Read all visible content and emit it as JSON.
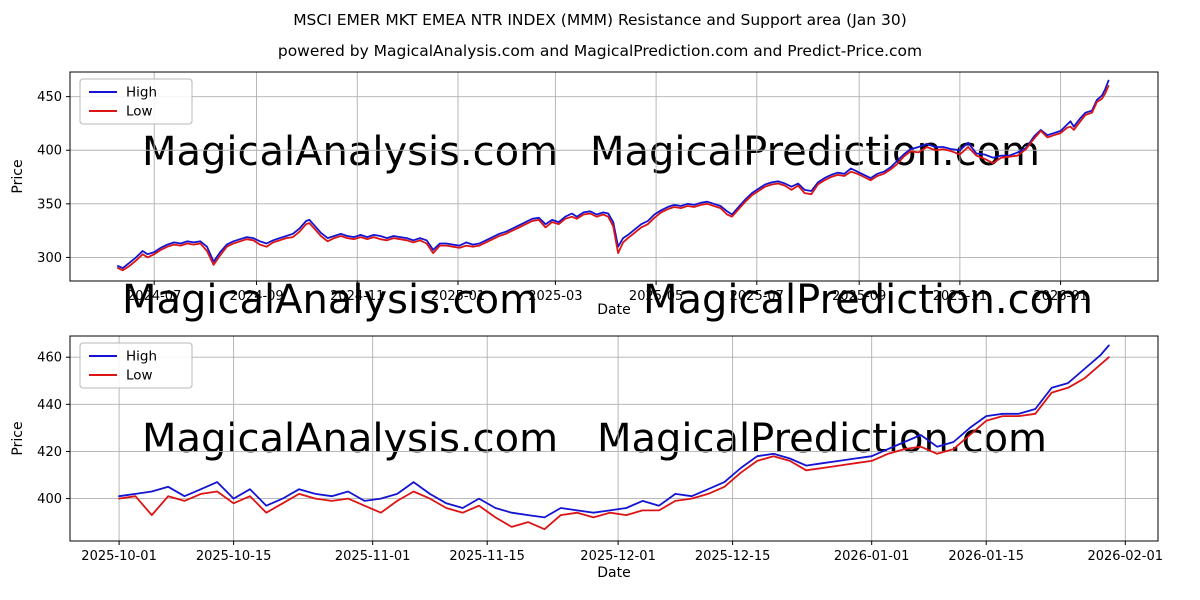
{
  "figure": {
    "title": "MSCI EMER MKT EMEA NTR INDEX (MMM) Resistance and Support area (Jan 30)",
    "subtitle": "powered by MagicalAnalysis.com and MagicalPrediction.com and Predict-Price.com"
  },
  "watermarks": {
    "left": "MagicalAnalysis.com",
    "right": "MagicalPrediction.com"
  },
  "colors": {
    "high": "#1414d2",
    "low": "#dc1414",
    "grid": "#b0b0b0",
    "frame": "#000000",
    "watermark": "#e5e5e5",
    "legend_border": "#b7b7b7"
  },
  "chart_data": [
    {
      "type": "line",
      "name": "full-history",
      "xlabel": "Date",
      "ylabel": "Price",
      "grid": true,
      "legend_position": "upper left",
      "ylim": [
        278,
        473
      ],
      "yticks": [
        300,
        350,
        400,
        450
      ],
      "xlim": [
        "2024-05-11",
        "2026-03-01"
      ],
      "xticks": [
        {
          "date": "2024-07-01",
          "label": "2024-07"
        },
        {
          "date": "2024-09-01",
          "label": "2024-09"
        },
        {
          "date": "2024-11-01",
          "label": "2024-11"
        },
        {
          "date": "2025-01-01",
          "label": "2025-01"
        },
        {
          "date": "2025-03-01",
          "label": "2025-03"
        },
        {
          "date": "2025-05-01",
          "label": "2025-05"
        },
        {
          "date": "2025-07-01",
          "label": "2025-07"
        },
        {
          "date": "2025-09-01",
          "label": "2025-09"
        },
        {
          "date": "2025-11-01",
          "label": "2025-11"
        },
        {
          "date": "2026-01-01",
          "label": "2026-01"
        }
      ],
      "dates": [
        "2024-06-09",
        "2024-06-12",
        "2024-06-16",
        "2024-06-20",
        "2024-06-24",
        "2024-06-27",
        "2024-07-01",
        "2024-07-05",
        "2024-07-09",
        "2024-07-13",
        "2024-07-17",
        "2024-07-21",
        "2024-07-25",
        "2024-07-29",
        "2024-08-02",
        "2024-08-06",
        "2024-08-10",
        "2024-08-14",
        "2024-08-18",
        "2024-08-22",
        "2024-08-26",
        "2024-08-30",
        "2024-09-03",
        "2024-09-07",
        "2024-09-11",
        "2024-09-15",
        "2024-09-19",
        "2024-09-23",
        "2024-09-27",
        "2024-10-01",
        "2024-10-03",
        "2024-10-06",
        "2024-10-10",
        "2024-10-14",
        "2024-10-18",
        "2024-10-22",
        "2024-10-26",
        "2024-10-30",
        "2024-11-03",
        "2024-11-07",
        "2024-11-11",
        "2024-11-15",
        "2024-11-19",
        "2024-11-23",
        "2024-11-27",
        "2024-12-01",
        "2024-12-05",
        "2024-12-09",
        "2024-12-13",
        "2024-12-17",
        "2024-12-21",
        "2024-12-25",
        "2024-12-29",
        "2025-01-02",
        "2025-01-06",
        "2025-01-10",
        "2025-01-14",
        "2025-01-18",
        "2025-01-22",
        "2025-01-26",
        "2025-01-30",
        "2025-02-03",
        "2025-02-07",
        "2025-02-11",
        "2025-02-15",
        "2025-02-19",
        "2025-02-23",
        "2025-02-27",
        "2025-03-03",
        "2025-03-07",
        "2025-03-11",
        "2025-03-14",
        "2025-03-18",
        "2025-03-22",
        "2025-03-26",
        "2025-03-30",
        "2025-04-02",
        "2025-04-05",
        "2025-04-08",
        "2025-04-11",
        "2025-04-14",
        "2025-04-18",
        "2025-04-22",
        "2025-04-26",
        "2025-04-30",
        "2025-05-04",
        "2025-05-08",
        "2025-05-12",
        "2025-05-16",
        "2025-05-20",
        "2025-05-24",
        "2025-05-28",
        "2025-06-01",
        "2025-06-05",
        "2025-06-09",
        "2025-06-13",
        "2025-06-16",
        "2025-06-20",
        "2025-06-24",
        "2025-06-28",
        "2025-07-02",
        "2025-07-06",
        "2025-07-10",
        "2025-07-14",
        "2025-07-18",
        "2025-07-22",
        "2025-07-26",
        "2025-07-30",
        "2025-08-03",
        "2025-08-07",
        "2025-08-11",
        "2025-08-15",
        "2025-08-19",
        "2025-08-23",
        "2025-08-27",
        "2025-08-31",
        "2025-09-04",
        "2025-09-08",
        "2025-09-12",
        "2025-09-16",
        "2025-09-20",
        "2025-09-24",
        "2025-09-28",
        "2025-10-02",
        "2025-10-07",
        "2025-10-12",
        "2025-10-17",
        "2025-10-22",
        "2025-10-27",
        "2025-11-01",
        "2025-11-06",
        "2025-11-11",
        "2025-11-16",
        "2025-11-21",
        "2025-11-26",
        "2025-12-01",
        "2025-12-06",
        "2025-12-11",
        "2025-12-16",
        "2025-12-20",
        "2025-12-24",
        "2025-12-28",
        "2026-01-01",
        "2026-01-05",
        "2026-01-07",
        "2026-01-09",
        "2026-01-13",
        "2026-01-16",
        "2026-01-20",
        "2026-01-23",
        "2026-01-26",
        "2026-01-28",
        "2026-01-30"
      ],
      "series": [
        {
          "name": "High",
          "color": "#1414d2",
          "values": [
            292,
            290,
            295,
            300,
            306,
            303,
            305,
            309,
            312,
            314,
            313,
            315,
            314,
            315,
            310,
            296,
            305,
            312,
            315,
            317,
            319,
            318,
            315,
            313,
            316,
            318,
            320,
            322,
            327,
            334,
            335,
            330,
            323,
            318,
            320,
            322,
            320,
            319,
            321,
            319,
            321,
            320,
            318,
            320,
            319,
            318,
            316,
            318,
            316,
            307,
            313,
            313,
            312,
            311,
            314,
            312,
            313,
            316,
            319,
            322,
            324,
            327,
            330,
            333,
            336,
            337,
            331,
            335,
            333,
            338,
            341,
            338,
            342,
            343,
            340,
            342,
            341,
            333,
            310,
            318,
            321,
            326,
            331,
            334,
            340,
            344,
            347,
            349,
            348,
            350,
            349,
            351,
            352,
            350,
            348,
            343,
            340,
            347,
            354,
            360,
            364,
            368,
            370,
            371,
            369,
            366,
            369,
            363,
            362,
            370,
            374,
            377,
            379,
            378,
            383,
            380,
            377,
            374,
            378,
            380,
            384,
            390,
            396,
            401,
            403,
            406,
            403,
            403,
            401,
            400,
            407,
            397,
            396,
            393,
            395,
            395,
            398,
            402,
            413,
            419,
            414,
            416,
            418,
            424,
            427,
            422,
            430,
            435,
            437,
            447,
            451,
            457,
            465
          ]
        },
        {
          "name": "Low",
          "color": "#dc1414",
          "values": [
            290,
            288,
            292,
            297,
            303,
            300,
            303,
            307,
            310,
            312,
            311,
            313,
            312,
            313,
            306,
            293,
            302,
            310,
            313,
            315,
            317,
            316,
            312,
            310,
            314,
            316,
            318,
            319,
            324,
            331,
            332,
            327,
            320,
            315,
            318,
            320,
            318,
            317,
            319,
            317,
            319,
            317,
            316,
            318,
            317,
            316,
            314,
            316,
            313,
            304,
            311,
            311,
            310,
            309,
            311,
            310,
            311,
            314,
            317,
            320,
            322,
            325,
            328,
            331,
            334,
            335,
            328,
            333,
            331,
            336,
            338,
            336,
            340,
            341,
            338,
            340,
            338,
            329,
            304,
            314,
            318,
            323,
            328,
            331,
            337,
            342,
            345,
            347,
            346,
            348,
            347,
            349,
            350,
            348,
            346,
            340,
            338,
            345,
            352,
            358,
            362,
            366,
            368,
            369,
            367,
            363,
            367,
            360,
            359,
            368,
            372,
            375,
            377,
            376,
            380,
            378,
            375,
            372,
            376,
            378,
            382,
            387,
            394,
            399,
            398,
            403,
            400,
            401,
            399,
            396,
            403,
            395,
            392,
            388,
            393,
            394,
            395,
            401,
            411,
            418,
            412,
            414,
            416,
            421,
            422,
            419,
            427,
            433,
            435,
            445,
            448,
            453,
            460
          ]
        }
      ]
    },
    {
      "type": "line",
      "name": "recent-four-months",
      "xlabel": "Date",
      "ylabel": "Price",
      "grid": true,
      "legend_position": "upper left",
      "ylim": [
        382,
        469
      ],
      "yticks": [
        400,
        420,
        440,
        460
      ],
      "xlim": [
        "2025-09-25",
        "2026-02-05"
      ],
      "xticks": [
        {
          "date": "2025-10-01",
          "label": "2025-10-01"
        },
        {
          "date": "2025-10-15",
          "label": "2025-10-15"
        },
        {
          "date": "2025-11-01",
          "label": "2025-11-01"
        },
        {
          "date": "2025-11-15",
          "label": "2025-11-15"
        },
        {
          "date": "2025-12-01",
          "label": "2025-12-01"
        },
        {
          "date": "2025-12-15",
          "label": "2025-12-15"
        },
        {
          "date": "2026-01-01",
          "label": "2026-01-01"
        },
        {
          "date": "2026-01-15",
          "label": "2026-01-15"
        },
        {
          "date": "2026-02-01",
          "label": "2026-02-01"
        }
      ],
      "dates": [
        "2025-10-01",
        "2025-10-03",
        "2025-10-05",
        "2025-10-07",
        "2025-10-09",
        "2025-10-11",
        "2025-10-13",
        "2025-10-15",
        "2025-10-17",
        "2025-10-19",
        "2025-10-21",
        "2025-10-23",
        "2025-10-25",
        "2025-10-27",
        "2025-10-29",
        "2025-10-31",
        "2025-11-02",
        "2025-11-04",
        "2025-11-06",
        "2025-11-08",
        "2025-11-10",
        "2025-11-12",
        "2025-11-14",
        "2025-11-16",
        "2025-11-18",
        "2025-11-20",
        "2025-11-22",
        "2025-11-24",
        "2025-11-26",
        "2025-11-28",
        "2025-11-30",
        "2025-12-02",
        "2025-12-04",
        "2025-12-06",
        "2025-12-08",
        "2025-12-10",
        "2025-12-12",
        "2025-12-14",
        "2025-12-16",
        "2025-12-18",
        "2025-12-20",
        "2025-12-22",
        "2025-12-24",
        "2025-12-26",
        "2025-12-28",
        "2025-12-30",
        "2026-01-01",
        "2026-01-03",
        "2026-01-05",
        "2026-01-07",
        "2026-01-09",
        "2026-01-11",
        "2026-01-13",
        "2026-01-15",
        "2026-01-17",
        "2026-01-19",
        "2026-01-21",
        "2026-01-23",
        "2026-01-25",
        "2026-01-27",
        "2026-01-29",
        "2026-01-30"
      ],
      "series": [
        {
          "name": "High",
          "color": "#1414d2",
          "values": [
            401,
            402,
            403,
            405,
            401,
            404,
            407,
            400,
            404,
            397,
            400,
            404,
            402,
            401,
            403,
            399,
            400,
            402,
            407,
            402,
            398,
            396,
            400,
            396,
            394,
            393,
            392,
            396,
            395,
            394,
            395,
            396,
            399,
            397,
            402,
            401,
            404,
            407,
            413,
            418,
            419,
            417,
            414,
            415,
            416,
            417,
            418,
            421,
            424,
            427,
            422,
            424,
            430,
            435,
            436,
            436,
            438,
            447,
            449,
            455,
            461,
            465
          ]
        },
        {
          "name": "Low",
          "color": "#dc1414",
          "values": [
            400,
            401,
            393,
            401,
            399,
            402,
            403,
            398,
            401,
            394,
            398,
            402,
            400,
            399,
            400,
            397,
            394,
            399,
            403,
            400,
            396,
            394,
            397,
            392,
            388,
            390,
            387,
            393,
            394,
            392,
            394,
            393,
            395,
            395,
            399,
            400,
            402,
            405,
            411,
            416,
            418,
            416,
            412,
            413,
            414,
            415,
            416,
            419,
            421,
            422,
            419,
            421,
            427,
            433,
            435,
            435,
            436,
            445,
            447,
            451,
            457,
            460
          ]
        }
      ]
    }
  ]
}
